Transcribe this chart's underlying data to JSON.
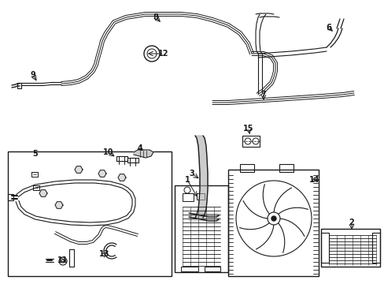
{
  "bg_color": "#ffffff",
  "line_color": "#1a1a1a",
  "figsize": [
    4.89,
    3.6
  ],
  "dpi": 100,
  "labels": {
    "1": [
      248,
      195,
      238,
      175
    ],
    "2": [
      447,
      292,
      447,
      278
    ],
    "3": [
      265,
      230,
      255,
      218
    ],
    "4": [
      192,
      193,
      178,
      190
    ],
    "5": [
      63,
      195,
      63,
      195
    ],
    "6": [
      421,
      42,
      415,
      35
    ],
    "7": [
      335,
      130,
      335,
      122
    ],
    "8": [
      202,
      30,
      196,
      22
    ],
    "9": [
      50,
      105,
      42,
      98
    ],
    "10": [
      148,
      197,
      138,
      190
    ],
    "11": [
      87,
      320,
      80,
      328
    ],
    "12": [
      215,
      68,
      200,
      68
    ],
    "13": [
      145,
      315,
      133,
      322
    ],
    "14": [
      348,
      230,
      338,
      230
    ],
    "15": [
      321,
      173,
      310,
      163
    ]
  }
}
